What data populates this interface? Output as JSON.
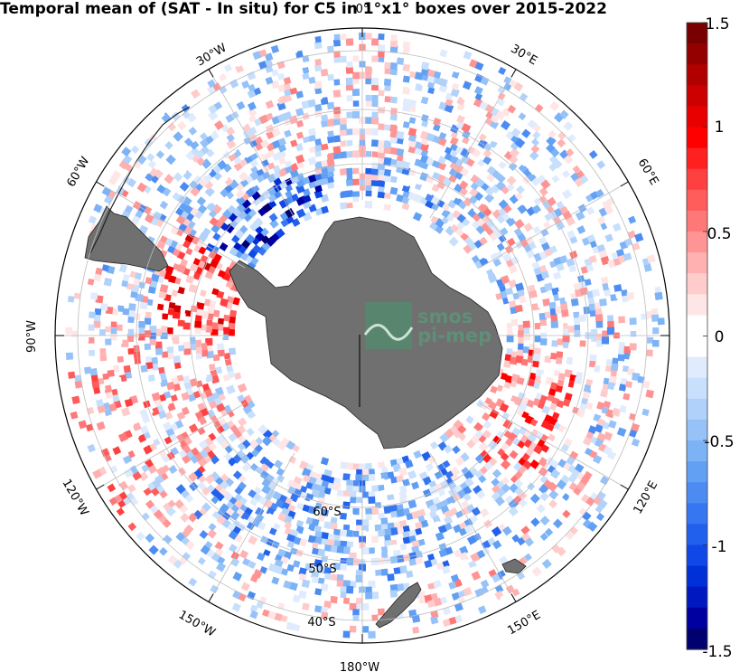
{
  "title": "Temporal mean of (SAT - In situ) for C5 in 1°x1° boxes over 2015-2022",
  "map": {
    "longitude_labels": [
      "30°W",
      "30°E",
      "60°W",
      "60°E",
      "90°W",
      "90°E",
      "120°W",
      "120°E",
      "150°W",
      "150°E",
      "180°W",
      "0°"
    ],
    "latitude_labels": [
      "60°S",
      "50°S",
      "40°S"
    ],
    "land_color": "#707070"
  },
  "watermark": {
    "line1": "smos",
    "line2": "pi-mep"
  },
  "colorbar": {
    "ticks": [
      "1.5",
      "1",
      "0.5",
      "0",
      "-0.5",
      "-1",
      "-1.5"
    ],
    "range": [
      -1.5,
      1.5
    ],
    "colors": [
      "#00006e",
      "#0000a0",
      "#0018c0",
      "#0030d8",
      "#1048e8",
      "#2060ec",
      "#3676f0",
      "#4c8cf2",
      "#62a0f4",
      "#7cb2f6",
      "#96c2f8",
      "#b0d2fa",
      "#c8e0fc",
      "#e0ecfe",
      "#ffffff",
      "#ffffff",
      "#ffe6e6",
      "#ffcccc",
      "#ffb0b0",
      "#ff9494",
      "#ff7878",
      "#ff5c5c",
      "#ff4040",
      "#ff2020",
      "#ff0000",
      "#e80000",
      "#cc0000",
      "#b00000",
      "#940000",
      "#780000"
    ]
  }
}
